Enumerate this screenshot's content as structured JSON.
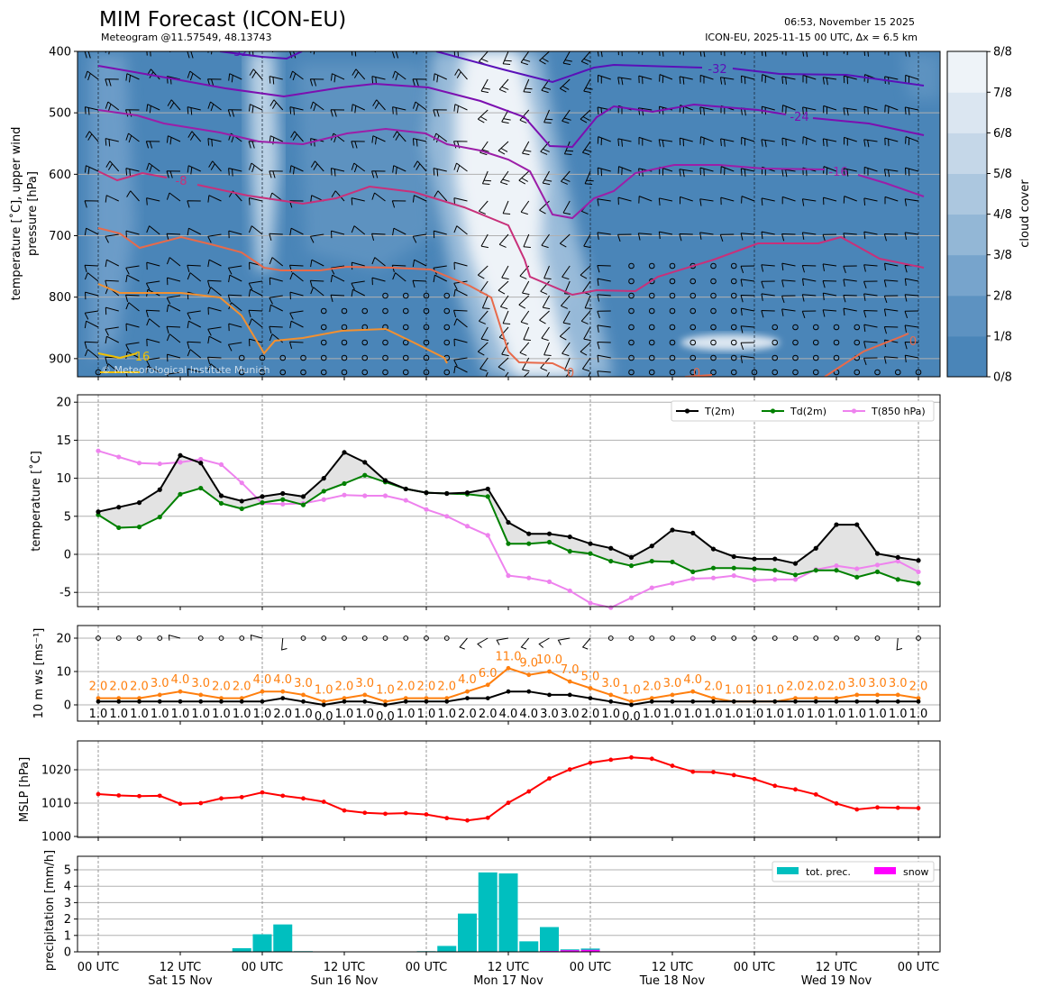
{
  "header": {
    "title": "MIM Forecast (ICON-EU)",
    "subtitle": "Meteogram @11.57549, 48.13743",
    "timestamp": "06:53, November 15 2025",
    "run_info": "ICON-EU, 2025-11-15 00 UTC, Δx = 6.5 km"
  },
  "copyright": "© Meteorological Institute Munich",
  "x_axis": {
    "tick_labels": [
      "00 UTC",
      "12 UTC",
      "00 UTC",
      "12 UTC",
      "00 UTC",
      "12 UTC",
      "00 UTC",
      "12 UTC",
      "00 UTC",
      "12 UTC",
      "00 UTC"
    ],
    "day_labels": [
      "Sat 15 Nov",
      "Sun 16 Nov",
      "Mon 17 Nov",
      "Tue 18 Nov",
      "Wed 19 Nov"
    ],
    "time_step_hours": 3
  },
  "colors": {
    "t2m": "#000000",
    "td2m": "#008000",
    "t850": "#ee82ee",
    "ws": "#000000",
    "gust": "#ff7f0e",
    "mslp": "#ff0000",
    "precip": "#00bfbf",
    "snow": "#ff00ff",
    "cloud_scale": [
      "#4a85b8",
      "#5d92c1",
      "#77a4cc",
      "#93b7d6",
      "#acc7df",
      "#c5d7e8",
      "#dbe6f1",
      "#eef3f8"
    ]
  },
  "chart_data": [
    {
      "type": "contour",
      "title": "upper air cloud cover, isotherms and wind",
      "ylabel_line1": "temperature [˚C], upper wind",
      "ylabel_line2": "pressure [hPa]",
      "yticks": [
        "400",
        "500",
        "600",
        "700",
        "800",
        "900"
      ],
      "ylim": [
        930,
        400
      ],
      "isotherm_labels": [
        "-32",
        "-32",
        "-24",
        "-16",
        "-8",
        "0",
        "0",
        "0",
        "16"
      ],
      "colorbar": {
        "label": "cloud cover",
        "ticks": [
          "0/8",
          "1/8",
          "2/8",
          "3/8",
          "4/8",
          "5/8",
          "6/8",
          "7/8",
          "8/8"
        ]
      }
    },
    {
      "type": "line",
      "ylabel": "temperature [˚C]",
      "yticks": [
        "-5",
        "0",
        "5",
        "10",
        "15",
        "20"
      ],
      "ylim": [
        -6.9,
        21
      ],
      "legend": [
        "T(2m)",
        "Td(2m)",
        "T(850 hPa)"
      ],
      "legend_position": "top-right",
      "series": [
        {
          "name": "T(2m)",
          "values": [
            5.6,
            6.2,
            6.8,
            8.5,
            13.0,
            12.0,
            7.7,
            7.0,
            7.6,
            8.0,
            7.6,
            10.0,
            13.4,
            12.1,
            9.7,
            8.6,
            8.1,
            8.0,
            8.1,
            8.6,
            4.2,
            2.7,
            2.7,
            2.3,
            1.4,
            0.8,
            -0.4,
            1.1,
            3.2,
            2.8,
            0.7,
            -0.3,
            -0.6,
            -0.6,
            -1.2,
            0.8,
            3.9,
            3.9,
            0.1,
            -0.4,
            -0.8
          ]
        },
        {
          "name": "Td(2m)",
          "values": [
            5.2,
            3.5,
            3.6,
            4.9,
            7.9,
            8.7,
            6.7,
            6.0,
            6.8,
            7.2,
            6.5,
            8.3,
            9.3,
            10.4,
            9.5,
            8.6,
            8.1,
            8.0,
            7.9,
            7.6,
            1.4,
            1.4,
            1.6,
            0.4,
            0.1,
            -0.9,
            -1.5,
            -0.9,
            -1.0,
            -2.3,
            -1.8,
            -1.8,
            -1.9,
            -2.1,
            -2.7,
            -2.1,
            -2.1,
            -3.0,
            -2.3,
            -3.3,
            -3.8
          ]
        },
        {
          "name": "T(850 hPa)",
          "values": [
            13.6,
            12.8,
            12.0,
            11.9,
            12.1,
            12.5,
            11.8,
            9.4,
            6.7,
            6.6,
            6.7,
            7.2,
            7.8,
            7.7,
            7.7,
            7.1,
            5.9,
            5.0,
            3.7,
            2.5,
            -2.8,
            -3.1,
            -3.6,
            -4.8,
            -6.4,
            -7.0,
            -5.7,
            -4.4,
            -3.8,
            -3.2,
            -3.1,
            -2.8,
            -3.4,
            -3.3,
            -3.3,
            -2.0,
            -1.5,
            -1.9,
            -1.4,
            -0.9,
            -2.3
          ]
        }
      ]
    },
    {
      "type": "line",
      "ylabel": "10 m ws [ms⁻¹]",
      "yticks": [
        "0",
        "10",
        "20"
      ],
      "ylim": [
        -4.9,
        23.8
      ],
      "series": [
        {
          "name": "wind speed",
          "values": [
            1,
            1,
            1,
            1,
            1,
            1,
            1,
            1,
            1,
            2,
            1,
            0,
            1,
            1,
            0,
            1,
            1,
            1,
            2,
            2,
            4,
            4,
            3,
            3,
            2,
            1,
            0,
            1,
            1,
            1,
            1,
            1,
            1,
            1,
            1,
            1,
            1,
            1,
            1,
            1,
            1
          ]
        },
        {
          "name": "gusts",
          "values": [
            2,
            2,
            2,
            3,
            4,
            3,
            2,
            2,
            4,
            4,
            3,
            1,
            2,
            3,
            1,
            2,
            2,
            2,
            4,
            6,
            11,
            9,
            10,
            7,
            5,
            3,
            1,
            2,
            3,
            4,
            2,
            1,
            1,
            1,
            2,
            2,
            2,
            3,
            3,
            3,
            2
          ]
        }
      ],
      "barb_indices": [
        4,
        8,
        9,
        18,
        19,
        20,
        21,
        22,
        23,
        24,
        39
      ]
    },
    {
      "type": "line",
      "ylabel": "MSLP [hPa]",
      "yticks": [
        "1000",
        "1010",
        "1020"
      ],
      "ylim": [
        1000,
        1028.6
      ],
      "series": [
        {
          "name": "MSLP",
          "values": [
            1012.7,
            1012.3,
            1012.1,
            1012.2,
            1009.8,
            1010.0,
            1011.4,
            1011.8,
            1013.2,
            1012.2,
            1011.4,
            1010.4,
            1007.8,
            1007.1,
            1006.8,
            1007.0,
            1006.6,
            1005.5,
            1004.8,
            1005.6,
            1010.1,
            1013.5,
            1017.4,
            1020.1,
            1022.1,
            1023.0,
            1023.7,
            1023.3,
            1021.2,
            1019.4,
            1019.3,
            1018.4,
            1017.2,
            1015.2,
            1014.1,
            1012.6,
            1009.9,
            1008.1,
            1008.7,
            1008.6,
            1008.5
          ]
        }
      ]
    },
    {
      "type": "bar",
      "ylabel": "precipitation [mm/h]",
      "yticks": [
        "0",
        "1",
        "2",
        "3",
        "4",
        "5"
      ],
      "ylim": [
        0,
        5.8
      ],
      "legend": [
        "tot. prec.",
        "snow"
      ],
      "legend_position": "top-right",
      "series": [
        {
          "name": "tot. prec.",
          "values": [
            0,
            0,
            0,
            0,
            0,
            0,
            0,
            0.22,
            1.07,
            1.67,
            0.04,
            0,
            0,
            0,
            0,
            0,
            0.04,
            0.36,
            2.33,
            4.84,
            4.78,
            0.64,
            1.51,
            0.15,
            0.2,
            0,
            0,
            0,
            0,
            0,
            0,
            0,
            0,
            0,
            0,
            0,
            0,
            0,
            0,
            0,
            0
          ]
        },
        {
          "name": "snow",
          "values": [
            0,
            0,
            0,
            0,
            0,
            0,
            0,
            0,
            0,
            0,
            0,
            0,
            0,
            0,
            0,
            0,
            0,
            0,
            0,
            0,
            0,
            0,
            0.05,
            0.1,
            0.12,
            0,
            0,
            0,
            0,
            0,
            0,
            0,
            0,
            0,
            0,
            0,
            0,
            0,
            0,
            0,
            0
          ]
        }
      ]
    }
  ]
}
